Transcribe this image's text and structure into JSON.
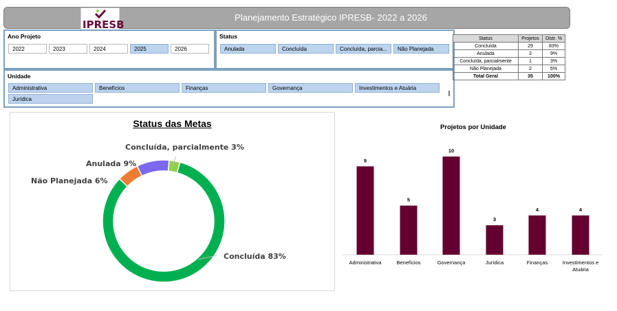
{
  "header": {
    "logo_text": "IPRESB",
    "title": "Planejamento Estratégico  IPRESB- 2022 a 2026"
  },
  "colors": {
    "brand": "#6a0a3a",
    "header_bg": "#a6a6a6",
    "selected_item": "#bcd4ee",
    "bar": "#63002f",
    "concluida": "#00b050",
    "anulada": "#7b68ee",
    "parcial": "#92d050",
    "nao_planejada": "#ed7d31"
  },
  "slicers": {
    "year": {
      "title": "Ano Projeto",
      "items": [
        {
          "label": "2022",
          "selected": false
        },
        {
          "label": "2023",
          "selected": false
        },
        {
          "label": "2024",
          "selected": false
        },
        {
          "label": "2025",
          "selected": true
        },
        {
          "label": "2026",
          "selected": false
        }
      ]
    },
    "status": {
      "title": "Status",
      "items": [
        {
          "label": "Anulada",
          "selected": true
        },
        {
          "label": "Concluída",
          "selected": true
        },
        {
          "label": "Concluída, parcia...",
          "selected": true
        },
        {
          "label": "Não Planejada",
          "selected": true
        }
      ]
    },
    "unit": {
      "title": "Unidade",
      "items": [
        {
          "label": "Administrativa",
          "selected": true
        },
        {
          "label": "Benefícios",
          "selected": true
        },
        {
          "label": "Finanças",
          "selected": true
        },
        {
          "label": "Governança",
          "selected": true
        },
        {
          "label": "Investimentos e Atuária",
          "selected": true
        },
        {
          "label": "Jurídica",
          "selected": true
        }
      ]
    }
  },
  "status_table": {
    "headers": [
      "Status",
      "Projetos",
      "Distr. %"
    ],
    "rows": [
      [
        "Concluída",
        "29",
        "83%"
      ],
      [
        "Anulada",
        "3",
        "9%"
      ],
      [
        "Concluída, parcialmente",
        "1",
        "3%"
      ],
      [
        "Não Planejada",
        "2",
        "6%"
      ]
    ],
    "total": [
      "Total Geral",
      "35",
      "100%"
    ]
  },
  "chart_data": [
    {
      "type": "pie",
      "title": "Status das Metas",
      "slices": [
        {
          "label": "Concluída",
          "value": 29,
          "pct_label": "83%"
        },
        {
          "label": "Não Planejada",
          "value": 2,
          "pct_label": "6%"
        },
        {
          "label": "Anulada",
          "value": 3,
          "pct_label": "9%"
        },
        {
          "label": "Concluída, parcialmente",
          "value": 1,
          "pct_label": "3%"
        }
      ]
    },
    {
      "type": "bar",
      "title": "Projetos por Unidade",
      "categories": [
        "Administrativa",
        "Benefícios",
        "Governança",
        "Jurídica",
        "Finanças",
        "Investimentos e Atuária"
      ],
      "values": [
        9,
        5,
        10,
        3,
        4,
        4
      ],
      "ylim": [
        0,
        10
      ],
      "grid": false,
      "xlabel": "",
      "ylabel": ""
    }
  ]
}
